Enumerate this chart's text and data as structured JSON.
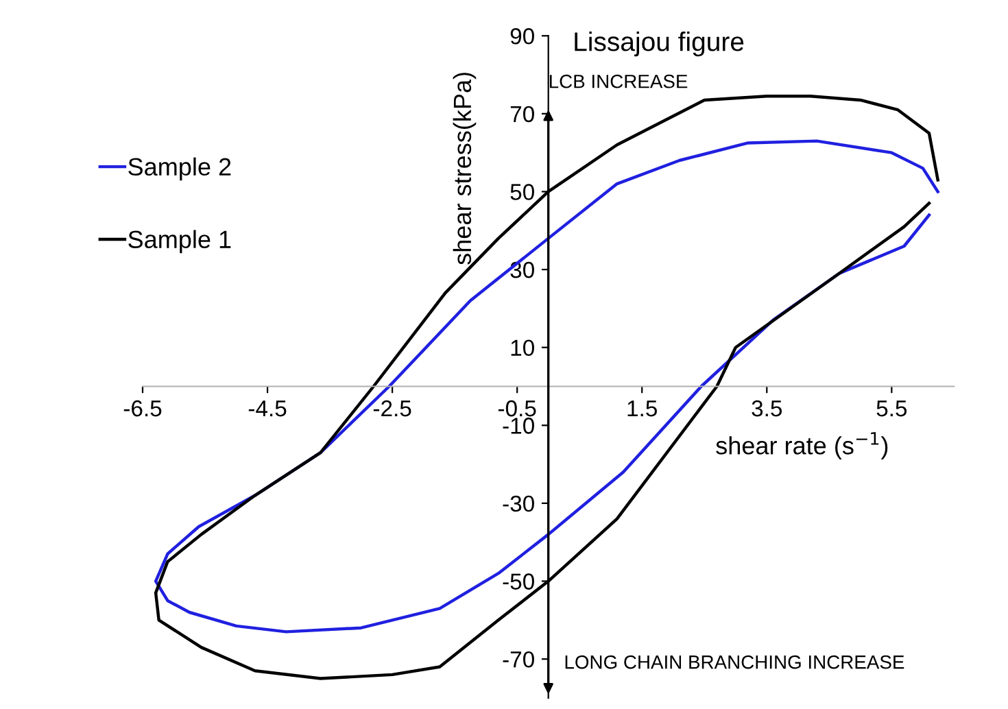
{
  "chart_data": {
    "type": "line",
    "title": "Lissajou figure",
    "xlabel": "shear rate (s$^{−1}$)",
    "ylabel": "shear stress(kPa)",
    "series": [
      {
        "name": "Sample 2",
        "color": "#2020e0",
        "x": [
          6.24,
          6.0,
          5.5,
          4.3,
          3.2,
          2.1,
          1.1,
          0,
          -1.25,
          -2.55,
          -3.65,
          -4.7,
          -5.6,
          -6.1,
          -6.29,
          -6.1,
          -5.75,
          -5.0,
          -4.2,
          -3.0,
          -1.74,
          -0.8,
          0,
          1.2,
          2.45,
          3.6,
          4.66,
          5.7,
          6.1
        ],
        "values": [
          50,
          56,
          60,
          63,
          62.5,
          58,
          52,
          38,
          22,
          0,
          -17,
          -28,
          -36,
          -43,
          -50,
          -55,
          -58,
          -61.5,
          -63,
          -62,
          -57,
          -48,
          -38,
          -22,
          0,
          17,
          29,
          36,
          44
        ]
      },
      {
        "name": "Sample 1",
        "color": "#000000",
        "x": [
          6.24,
          6.1,
          5.6,
          5.0,
          4.2,
          3.5,
          2.5,
          1.1,
          0,
          -0.8,
          -1.65,
          -2.8,
          -3.65,
          -4.7,
          -5.56,
          -6.1,
          -6.29,
          -6.24,
          -5.56,
          -4.7,
          -3.65,
          -2.5,
          -1.74,
          -0.8,
          0,
          1.1,
          2.7,
          3.0,
          4.66,
          5.7,
          6.1
        ],
        "values": [
          53,
          65,
          71,
          73.5,
          74.5,
          74.5,
          73.5,
          62,
          50,
          38,
          24,
          0,
          -17,
          -28,
          -38,
          -45,
          -53,
          -60,
          -67,
          -73,
          -75,
          -74,
          -72,
          -60,
          -50,
          -34,
          0,
          10,
          29,
          41,
          47
        ]
      }
    ],
    "xlim": [
      -6.5,
      6.5
    ],
    "ylim": [
      -80,
      90
    ],
    "xticks": [
      -6.5,
      -4.5,
      -2.5,
      -0.5,
      1.5,
      3.5,
      5.5
    ],
    "yticks": [
      -70,
      -50,
      -30,
      -10,
      10,
      30,
      50,
      70,
      90
    ],
    "annotations": [
      "LCB INCREASE",
      "LONG CHAIN BRANCHING INCREASE"
    ],
    "legend": "top left",
    "grid": false,
    "marker": "none",
    "line_style": "solid"
  }
}
